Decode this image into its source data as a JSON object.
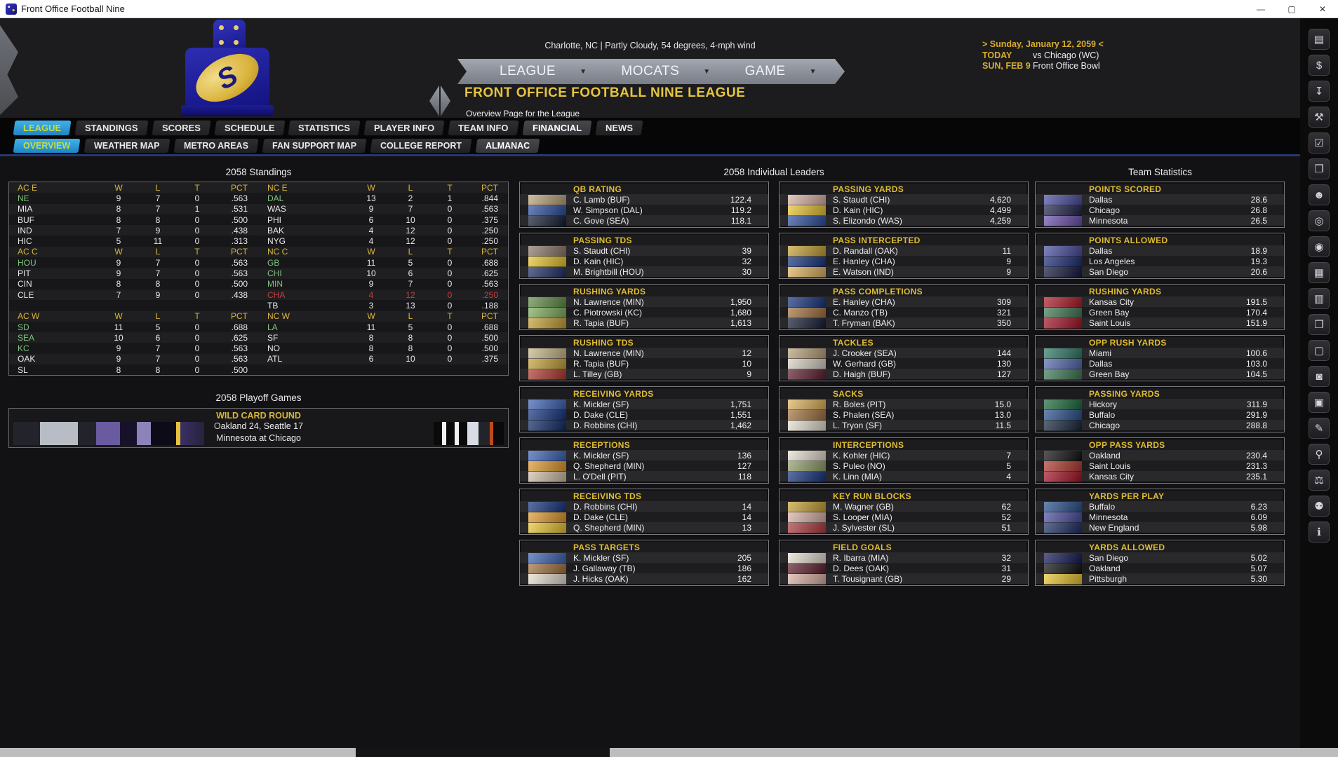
{
  "window": {
    "title": "Front Office Football Nine",
    "controls": [
      {
        "name": "minimize-button",
        "glyph": "—"
      },
      {
        "name": "maximize-button",
        "glyph": "▢"
      },
      {
        "name": "close-button",
        "glyph": "✕"
      }
    ]
  },
  "header": {
    "weather": "Charlotte, NC | Partly Cloudy, 54 degrees, 4-mph wind",
    "menus": [
      "LEAGUE",
      "MOCATS",
      "GAME"
    ],
    "page_title": "FRONT OFFICE FOOTBALL NINE LEAGUE",
    "page_subtitle": "Overview Page for the League",
    "schedule_date": "> Sunday, January 12, 2059 <",
    "schedule_rows": [
      {
        "label": "TODAY",
        "value": "vs Chicago (WC)"
      },
      {
        "label": "SUN, FEB 9",
        "value": "Front Office Bowl"
      }
    ]
  },
  "tabs_primary": [
    {
      "label": "LEAGUE",
      "state": "selected"
    },
    {
      "label": "STANDINGS",
      "state": ""
    },
    {
      "label": "SCORES",
      "state": ""
    },
    {
      "label": "SCHEDULE",
      "state": ""
    },
    {
      "label": "STATISTICS",
      "state": ""
    },
    {
      "label": "PLAYER INFO",
      "state": ""
    },
    {
      "label": "TEAM INFO",
      "state": ""
    },
    {
      "label": "FINANCIAL",
      "state": "highlight"
    },
    {
      "label": "NEWS",
      "state": ""
    }
  ],
  "tabs_secondary": [
    {
      "label": "OVERVIEW",
      "state": "selected"
    },
    {
      "label": "WEATHER MAP",
      "state": ""
    },
    {
      "label": "METRO AREAS",
      "state": ""
    },
    {
      "label": "FAN SUPPORT MAP",
      "state": ""
    },
    {
      "label": "COLLEGE REPORT",
      "state": ""
    },
    {
      "label": "ALMANAC",
      "state": "highlight"
    }
  ],
  "standings": {
    "title": "2058 Standings",
    "columns": [
      "W",
      "L",
      "T",
      "PCT"
    ],
    "left": [
      {
        "cells": [
          "AC E",
          "W",
          "L",
          "T",
          "PCT"
        ],
        "type": "header"
      },
      {
        "cells": [
          "NE",
          "9",
          "7",
          "0",
          ".563"
        ],
        "type": "green"
      },
      {
        "cells": [
          "MIA",
          "8",
          "7",
          "1",
          ".531"
        ],
        "type": "normal"
      },
      {
        "cells": [
          "BUF",
          "8",
          "8",
          "0",
          ".500"
        ],
        "type": "normal"
      },
      {
        "cells": [
          "IND",
          "7",
          "9",
          "0",
          ".438"
        ],
        "type": "normal"
      },
      {
        "cells": [
          "HIC",
          "5",
          "11",
          "0",
          ".313"
        ],
        "type": "normal"
      },
      {
        "cells": [
          "AC C",
          "W",
          "L",
          "T",
          "PCT"
        ],
        "type": "header"
      },
      {
        "cells": [
          "HOU",
          "9",
          "7",
          "0",
          ".563"
        ],
        "type": "green"
      },
      {
        "cells": [
          "PIT",
          "9",
          "7",
          "0",
          ".563"
        ],
        "type": "normal"
      },
      {
        "cells": [
          "CIN",
          "8",
          "8",
          "0",
          ".500"
        ],
        "type": "normal"
      },
      {
        "cells": [
          "CLE",
          "7",
          "9",
          "0",
          ".438"
        ],
        "type": "normal"
      },
      {
        "cells": [
          "",
          "",
          "",
          "",
          ""
        ],
        "type": "blank"
      },
      {
        "cells": [
          "AC W",
          "W",
          "L",
          "T",
          "PCT"
        ],
        "type": "header"
      },
      {
        "cells": [
          "SD",
          "11",
          "5",
          "0",
          ".688"
        ],
        "type": "green"
      },
      {
        "cells": [
          "SEA",
          "10",
          "6",
          "0",
          ".625"
        ],
        "type": "green"
      },
      {
        "cells": [
          "KC",
          "9",
          "7",
          "0",
          ".563"
        ],
        "type": "green"
      },
      {
        "cells": [
          "OAK",
          "9",
          "7",
          "0",
          ".563"
        ],
        "type": "normal"
      },
      {
        "cells": [
          "SL",
          "8",
          "8",
          "0",
          ".500"
        ],
        "type": "normal"
      }
    ],
    "right": [
      {
        "cells": [
          "NC E",
          "W",
          "L",
          "T",
          "PCT"
        ],
        "type": "header"
      },
      {
        "cells": [
          "DAL",
          "13",
          "2",
          "1",
          ".844"
        ],
        "type": "green"
      },
      {
        "cells": [
          "WAS",
          "9",
          "7",
          "0",
          ".563"
        ],
        "type": "normal"
      },
      {
        "cells": [
          "PHI",
          "6",
          "10",
          "0",
          ".375"
        ],
        "type": "normal"
      },
      {
        "cells": [
          "BAK",
          "4",
          "12",
          "0",
          ".250"
        ],
        "type": "normal"
      },
      {
        "cells": [
          "NYG",
          "4",
          "12",
          "0",
          ".250"
        ],
        "type": "normal"
      },
      {
        "cells": [
          "NC C",
          "W",
          "L",
          "T",
          "PCT"
        ],
        "type": "header"
      },
      {
        "cells": [
          "GB",
          "11",
          "5",
          "0",
          ".688"
        ],
        "type": "green"
      },
      {
        "cells": [
          "CHI",
          "10",
          "6",
          "0",
          ".625"
        ],
        "type": "green"
      },
      {
        "cells": [
          "MIN",
          "9",
          "7",
          "0",
          ".563"
        ],
        "type": "green"
      },
      {
        "cells": [
          "CHA",
          "4",
          "12",
          "0",
          ".250"
        ],
        "type": "red"
      },
      {
        "cells": [
          "TB",
          "3",
          "13",
          "0",
          ".188"
        ],
        "type": "normal"
      },
      {
        "cells": [
          "NC W",
          "W",
          "L",
          "T",
          "PCT"
        ],
        "type": "header"
      },
      {
        "cells": [
          "LA",
          "11",
          "5",
          "0",
          ".688"
        ],
        "type": "green"
      },
      {
        "cells": [
          "SF",
          "8",
          "8",
          "0",
          ".500"
        ],
        "type": "normal"
      },
      {
        "cells": [
          "NO",
          "8",
          "8",
          "0",
          ".500"
        ],
        "type": "normal"
      },
      {
        "cells": [
          "ATL",
          "6",
          "10",
          "0",
          ".375"
        ],
        "type": "normal"
      },
      {
        "cells": [
          "",
          "",
          "",
          "",
          ""
        ],
        "type": "blank"
      }
    ]
  },
  "playoffs": {
    "title": "2058 Playoff Games",
    "round": "WILD CARD ROUND",
    "games": [
      "Oakland 24, Seattle 17",
      "Minnesota at Chicago"
    ]
  },
  "leaders": {
    "title": "2058 Individual Leaders",
    "col1": [
      {
        "category": "QB RATING",
        "rows": [
          [
            "C. Lamb (BUF)",
            "122.4"
          ],
          [
            "W. Simpson (DAL)",
            "119.2"
          ],
          [
            "C. Gove (SEA)",
            "118.1"
          ]
        ],
        "thumbs": [
          "#b9a37b",
          "#2d4f9e",
          "#141c33"
        ]
      },
      {
        "category": "PASSING TDS",
        "rows": [
          [
            "S. Staudt (CHI)",
            "39"
          ],
          [
            "D. Kain (HIC)",
            "32"
          ],
          [
            "M. Brightbill (HOU)",
            "30"
          ]
        ],
        "thumbs": [
          "#8c7a6a",
          "#e9c531",
          "#1d2f63"
        ]
      },
      {
        "category": "RUSHING YARDS",
        "rows": [
          [
            "N. Lawrence (MIN)",
            "1,950"
          ],
          [
            "C. Piotrowski (KC)",
            "1,680"
          ],
          [
            "R. Tapia (BUF)",
            "1,613"
          ]
        ],
        "thumbs": [
          "#5f8f46",
          "#7fae5f",
          "#c5a238"
        ]
      },
      {
        "category": "RUSHING TDS",
        "rows": [
          [
            "N. Lawrence (MIN)",
            "12"
          ],
          [
            "R. Tapia (BUF)",
            "10"
          ],
          [
            "L. Tilley (GB)",
            "9"
          ]
        ],
        "thumbs": [
          "#c9b88a",
          "#c5a238",
          "#b03a30"
        ]
      },
      {
        "category": "RECEIVING YARDS",
        "rows": [
          [
            "K. Mickler (SF)",
            "1,751"
          ],
          [
            "D. Dake (CLE)",
            "1,551"
          ],
          [
            "D. Robbins (CHI)",
            "1,462"
          ]
        ],
        "thumbs": [
          "#3d63b5",
          "#16337e",
          "#0f2a66"
        ]
      },
      {
        "category": "RECEPTIONS",
        "rows": [
          [
            "K. Mickler (SF)",
            "136"
          ],
          [
            "Q. Shepherd (MIN)",
            "127"
          ],
          [
            "L. O'Dell (PIT)",
            "118"
          ]
        ],
        "thumbs": [
          "#3d63b5",
          "#e09a2d",
          "#cfc0a8"
        ]
      },
      {
        "category": "RECEIVING TDS",
        "rows": [
          [
            "D. Robbins (CHI)",
            "14"
          ],
          [
            "D. Dake (CLE)",
            "14"
          ],
          [
            "Q. Shepherd (MIN)",
            "13"
          ]
        ],
        "thumbs": [
          "#16337e",
          "#e09a2d",
          "#e9c531"
        ]
      },
      {
        "category": "PASS TARGETS",
        "rows": [
          [
            "K. Mickler (SF)",
            "205"
          ],
          [
            "J. Gallaway (TB)",
            "186"
          ],
          [
            "J. Hicks (OAK)",
            "162"
          ]
        ],
        "thumbs": [
          "#3d63b5",
          "#a3733f",
          "#e7e0d2"
        ]
      }
    ],
    "col2": [
      {
        "category": "PASSING YARDS",
        "rows": [
          [
            "S. Staudt (CHI)",
            "4,620"
          ],
          [
            "D. Kain (HIC)",
            "4,499"
          ],
          [
            "S. Elizondo (WAS)",
            "4,259"
          ]
        ],
        "thumbs": [
          "#d9b2a4",
          "#e9c531",
          "#2d4f9e"
        ]
      },
      {
        "category": "PASS INTERCEPTED",
        "rows": [
          [
            "D. Randall (OAK)",
            "11"
          ],
          [
            "E. Hanley (CHA)",
            "9"
          ],
          [
            "E. Watson (IND)",
            "9"
          ]
        ],
        "thumbs": [
          "#c5a238",
          "#16337e",
          "#e0b45e"
        ]
      },
      {
        "category": "PASS COMPLETIONS",
        "rows": [
          [
            "E. Hanley (CHA)",
            "309"
          ],
          [
            "C. Manzo (TB)",
            "321"
          ],
          [
            "T. Fryman (BAK)",
            "350"
          ]
        ],
        "thumbs": [
          "#16337e",
          "#a3733f",
          "#141c33"
        ]
      },
      {
        "category": "TACKLES",
        "rows": [
          [
            "J. Crooker (SEA)",
            "144"
          ],
          [
            "W. Gerhard (GB)",
            "130"
          ],
          [
            "D. Haigh (BUF)",
            "127"
          ]
        ],
        "thumbs": [
          "#b9a37b",
          "#d9d2c6",
          "#5e1f2e"
        ]
      },
      {
        "category": "SACKS",
        "rows": [
          [
            "R. Boles (PIT)",
            "15.0"
          ],
          [
            "S. Phalen (SEA)",
            "13.0"
          ],
          [
            "L. Tryon (SF)",
            "11.5"
          ]
        ],
        "thumbs": [
          "#e0b45e",
          "#a3733f",
          "#e7e0d2"
        ]
      },
      {
        "category": "INTERCEPTIONS",
        "rows": [
          [
            "K. Kohler (HIC)",
            "7"
          ],
          [
            "S. Puleo (NO)",
            "5"
          ],
          [
            "K. Linn (MIA)",
            "4"
          ]
        ],
        "thumbs": [
          "#e7e0d2",
          "#8fa06a",
          "#16337e"
        ]
      },
      {
        "category": "KEY RUN BLOCKS",
        "rows": [
          [
            "M. Wagner (GB)",
            "62"
          ],
          [
            "S. Looper (MIA)",
            "52"
          ],
          [
            "J. Sylvester (SL)",
            "51"
          ]
        ],
        "thumbs": [
          "#c5a238",
          "#d9b2a4",
          "#b03a40"
        ]
      },
      {
        "category": "FIELD GOALS",
        "rows": [
          [
            "R. Ibarra (MIA)",
            "32"
          ],
          [
            "D. Dees (OAK)",
            "31"
          ],
          [
            "T. Tousignant (GB)",
            "29"
          ]
        ],
        "thumbs": [
          "#e7e0d2",
          "#5e1f2e",
          "#d9b2a4"
        ]
      }
    ]
  },
  "team_stats": {
    "title": "Team Statistics",
    "boxes": [
      {
        "category": "POINTS SCORED",
        "rows": [
          [
            "Dallas",
            "28.6"
          ],
          [
            "Chicago",
            "26.8"
          ],
          [
            "Minnesota",
            "26.5"
          ]
        ],
        "thumbs": [
          "#4a4e9e",
          "#23244a",
          "#6a4fae"
        ]
      },
      {
        "category": "POINTS ALLOWED",
        "rows": [
          [
            "Dallas",
            "18.9"
          ],
          [
            "Los Angeles",
            "19.3"
          ],
          [
            "San Diego",
            "20.6"
          ]
        ],
        "thumbs": [
          "#4a4e9e",
          "#1c2d77",
          "#12173b"
        ]
      },
      {
        "category": "RUSHING YARDS",
        "rows": [
          [
            "Kansas City",
            "191.5"
          ],
          [
            "Green Bay",
            "170.4"
          ],
          [
            "Saint Louis",
            "151.9"
          ]
        ],
        "thumbs": [
          "#b01a2a",
          "#3e7a54",
          "#a31325"
        ]
      },
      {
        "category": "OPP RUSH YARDS",
        "rows": [
          [
            "Miami",
            "100.6"
          ],
          [
            "Dallas",
            "103.0"
          ],
          [
            "Green Bay",
            "104.5"
          ]
        ],
        "thumbs": [
          "#2f7a6a",
          "#5568b0",
          "#3e7a54"
        ]
      },
      {
        "category": "PASSING YARDS",
        "rows": [
          [
            "Hickory",
            "311.9"
          ],
          [
            "Buffalo",
            "291.9"
          ],
          [
            "Chicago",
            "288.8"
          ]
        ],
        "thumbs": [
          "#1d6b3c",
          "#29508c",
          "#16253c"
        ]
      },
      {
        "category": "OPP PASS YARDS",
        "rows": [
          [
            "Oakland",
            "230.4"
          ],
          [
            "Saint Louis",
            "231.3"
          ],
          [
            "Kansas City",
            "235.1"
          ]
        ],
        "thumbs": [
          "#101010",
          "#b03a30",
          "#a31325"
        ]
      },
      {
        "category": "YARDS PER PLAY",
        "rows": [
          [
            "Buffalo",
            "6.23"
          ],
          [
            "Minnesota",
            "6.09"
          ],
          [
            "New England",
            "5.98"
          ]
        ],
        "thumbs": [
          "#29508c",
          "#4a4e9e",
          "#1d2f63"
        ]
      },
      {
        "category": "YARDS ALLOWED",
        "rows": [
          [
            "San Diego",
            "5.02"
          ],
          [
            "Oakland",
            "5.07"
          ],
          [
            "Pittsburgh",
            "5.30"
          ]
        ],
        "thumbs": [
          "#151a55",
          "#101010",
          "#e9c531"
        ]
      }
    ]
  },
  "sidebar_icons": [
    {
      "name": "news-report-icon",
      "glyph": "▤"
    },
    {
      "name": "finance-icon",
      "glyph": "$"
    },
    {
      "name": "save-icon",
      "glyph": "↧"
    },
    {
      "name": "tools-icon",
      "glyph": "⚒"
    },
    {
      "name": "checklist-icon",
      "glyph": "☑"
    },
    {
      "name": "almanac-icon",
      "glyph": "❒"
    },
    {
      "name": "roster-icon",
      "glyph": "☻"
    },
    {
      "name": "record-icon",
      "glyph": "◎"
    },
    {
      "name": "view-icon",
      "glyph": "◉"
    },
    {
      "name": "schedule-grid-icon",
      "glyph": "▦"
    },
    {
      "name": "depth-chart-icon",
      "glyph": "▥"
    },
    {
      "name": "copy-icon",
      "glyph": "❐"
    },
    {
      "name": "monitor-icon",
      "glyph": "▢"
    },
    {
      "name": "mouse-icon",
      "glyph": "◙"
    },
    {
      "name": "printer-icon",
      "glyph": "▣"
    },
    {
      "name": "edit-icon",
      "glyph": "✎"
    },
    {
      "name": "search-icon",
      "glyph": "⚲"
    },
    {
      "name": "scales-icon",
      "glyph": "⚖"
    },
    {
      "name": "profile-icon",
      "glyph": "⚉"
    },
    {
      "name": "info-icon",
      "glyph": "ℹ"
    }
  ],
  "colors": {
    "gold": "#e0bc30",
    "tab_selected_bg": "#2a97d8",
    "tab_selected_text": "#c9dc3a",
    "playoff_team_green": "#7cc47c",
    "alert_red": "#c4413b"
  }
}
